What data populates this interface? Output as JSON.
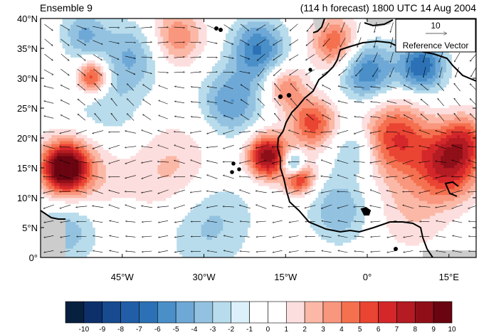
{
  "header": {
    "left_title": "Ensemble 9",
    "right_title": "(114 h forecast) 1800 UTC 14 Aug 2004"
  },
  "map": {
    "lon_range": [
      -60,
      20
    ],
    "lat_range": [
      0,
      40
    ],
    "lat_ticks": [
      "0°",
      "5°N",
      "10°N",
      "15°N",
      "20°N",
      "25°N",
      "30°N",
      "35°N",
      "40°N"
    ],
    "lon_ticks": [
      "45°W",
      "30°W",
      "15°W",
      "0°",
      "15°E"
    ],
    "land_mask_color": "#cccccc",
    "coastline_color": "#000000"
  },
  "reference_vector": {
    "value": "10",
    "label": "Reference Vector"
  },
  "colorbar": {
    "labels": [
      "-10",
      "-9",
      "-8",
      "-7",
      "-6",
      "-5",
      "-4",
      "-3",
      "-2",
      "-1",
      "0",
      "1",
      "2",
      "3",
      "4",
      "5",
      "6",
      "7",
      "8",
      "9",
      "10"
    ],
    "colors": [
      "#08203f",
      "#0d306b",
      "#174a8f",
      "#225ea8",
      "#2c71b5",
      "#4a8fc8",
      "#6ea8d6",
      "#93c2e0",
      "#b8dcec",
      "#dbf0fa",
      "#ffffff",
      "#ffffff",
      "#fddede",
      "#fbb8a6",
      "#f9967e",
      "#f4704f",
      "#ea4433",
      "#d4272a",
      "#b41b22",
      "#8f0f18",
      "#6a0410"
    ]
  },
  "field": {
    "blobs": [
      {
        "lon": -55.6,
        "lat": 15.0,
        "v": 9.5,
        "r": 2.8
      },
      {
        "lon": -53.0,
        "lat": 14.5,
        "v": 3,
        "r": 5
      },
      {
        "lon": -50.5,
        "lat": 30.2,
        "v": 6.5,
        "r": 2.0
      },
      {
        "lon": -18.3,
        "lat": 17.0,
        "v": 9,
        "r": 2.6
      },
      {
        "lon": -12.5,
        "lat": 13.5,
        "v": 7,
        "r": 2.0
      },
      {
        "lon": -13.5,
        "lat": 15.5,
        "v": -7,
        "r": 1.5
      },
      {
        "lon": -10.0,
        "lat": 22.5,
        "v": 5.5,
        "r": 3.0
      },
      {
        "lon": -15.0,
        "lat": 28.5,
        "v": 4,
        "r": 2.5
      },
      {
        "lon": -25.0,
        "lat": 26.0,
        "v": -4,
        "r": 4.0
      },
      {
        "lon": -20.0,
        "lat": 35.0,
        "v": -5,
        "r": 3.5
      },
      {
        "lon": -35.0,
        "lat": 37.0,
        "v": 4,
        "r": 3.5
      },
      {
        "lon": 5.0,
        "lat": 20.0,
        "v": 6,
        "r": 4.5
      },
      {
        "lon": 15.0,
        "lat": 15.5,
        "v": 7,
        "r": 4.0
      },
      {
        "lon": 18.0,
        "lat": 20.0,
        "v": 4,
        "r": 3.0
      },
      {
        "lon": 10.0,
        "lat": 32.0,
        "v": -6,
        "r": 3.0
      },
      {
        "lon": 0.0,
        "lat": 31.0,
        "v": -5,
        "r": 3.5
      },
      {
        "lon": -35.0,
        "lat": 13.5,
        "v": 3,
        "r": 6.0
      },
      {
        "lon": -30.0,
        "lat": 7.0,
        "v": -3,
        "r": 6.0
      },
      {
        "lon": -48.0,
        "lat": 25.0,
        "v": -2,
        "r": 5.0
      },
      {
        "lon": -43.0,
        "lat": 34.0,
        "v": -3,
        "r": 4.0
      },
      {
        "lon": -5.0,
        "lat": 8.0,
        "v": -3,
        "r": 4.0
      },
      {
        "lon": 8.0,
        "lat": 8.0,
        "v": 2,
        "r": 5.0
      },
      {
        "lon": -2.0,
        "lat": 18.0,
        "v": -3,
        "r": 3.0
      },
      {
        "lon": -6.0,
        "lat": 36.0,
        "v": 5,
        "r": 3.0
      },
      {
        "lon": -55.0,
        "lat": 5.0,
        "v": -3,
        "r": 4.0
      },
      {
        "lon": -52.0,
        "lat": 37.5,
        "v": -3,
        "r": 3.0
      }
    ]
  }
}
